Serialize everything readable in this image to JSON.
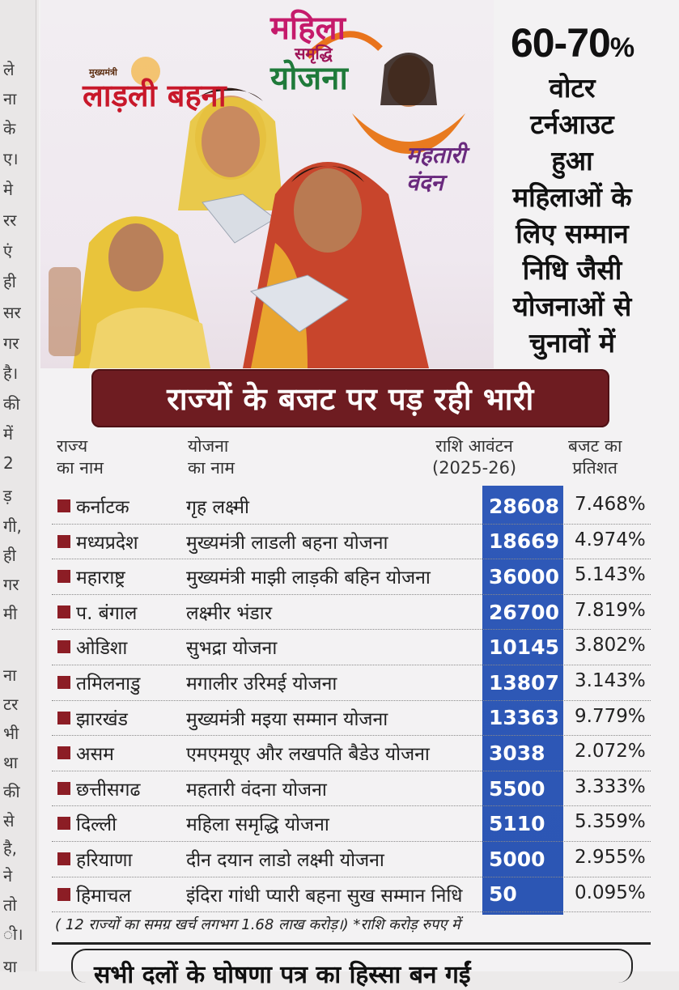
{
  "left_column_fragments": [
    "ले",
    "ना",
    "के",
    "ए।",
    "मे",
    "रर",
    "एं",
    "ही",
    "सर",
    "गर",
    "है।",
    "की",
    "में",
    "2",
    "ड़",
    "गी,",
    "ही",
    "गर",
    "मी",
    "ना",
    "टर",
    "भी",
    "था",
    "की",
    "से",
    "है,",
    "ने",
    "तो",
    "ी।",
    "या"
  ],
  "hero": {
    "ladli_small": "मुख्यमंत्री",
    "ladli_logo": "लाड़ली बहना",
    "mahila_logo_line1": "महिला",
    "mahila_logo_line2": "समृद्धि",
    "mahila_logo_line3": "योजना",
    "mahtari_logo": "महतारी वंदन",
    "colors": {
      "banner": "#6e1c21",
      "amount_column": "#2f59b8",
      "bullet": "#8c1d25"
    }
  },
  "side_note": {
    "percent": "60-70",
    "percent_sign": "%",
    "lines": [
      "वोटर",
      "टर्नआउट",
      "हुआ",
      "महिलाओं के",
      "लिए सम्मान",
      "निधि जैसी",
      "योजनाओं से",
      "चुनावों में"
    ]
  },
  "banner_title": "राज्यों के बजट पर पड़ रही भारी",
  "columns": {
    "state_l1": "राज्य",
    "state_l2": "का नाम",
    "scheme_l1": "योजना",
    "scheme_l2": "का नाम",
    "amount_l1": "राशि आवंटन",
    "amount_l2": "(2025-26)",
    "pct_l1": "बजट का",
    "pct_l2": "प्रतिशत"
  },
  "rows": [
    {
      "state": "कर्नाटक",
      "scheme": "गृह लक्ष्मी",
      "amount": "28608",
      "pct": "7.468%"
    },
    {
      "state": "मध्यप्रदेश",
      "scheme": "मुख्यमंत्री लाडली बहना योजना",
      "amount": "18669",
      "pct": "4.974%"
    },
    {
      "state": "महाराष्ट्र",
      "scheme": "मुख्यमंत्री माझी लाड़की बहिन योजना",
      "amount": "36000",
      "pct": "5.143%"
    },
    {
      "state": "प. बंगाल",
      "scheme": "लक्ष्मीर भंडार",
      "amount": "26700",
      "pct": "7.819%"
    },
    {
      "state": "ओडिशा",
      "scheme": "सुभद्रा योजना",
      "amount": "10145",
      "pct": "3.802%"
    },
    {
      "state": "तमिलनाडु",
      "scheme": "मगालीर उरिमई योजना",
      "amount": "13807",
      "pct": "3.143%"
    },
    {
      "state": "झारखंड",
      "scheme": "मुख्यमंत्री मइया सम्मान योजना",
      "amount": "13363",
      "pct": "9.779%"
    },
    {
      "state": "असम",
      "scheme": "एमएमयूए और लखपति बैडेउ योजना",
      "amount": "3038",
      "pct": "2.072%"
    },
    {
      "state": "छत्तीसगढ",
      "scheme": "महतारी वंदना योजना",
      "amount": "5500",
      "pct": "3.333%"
    },
    {
      "state": "दिल्ली",
      "scheme": "महिला समृद्धि योजना",
      "amount": "5110",
      "pct": "5.359%"
    },
    {
      "state": "हरियाणा",
      "scheme": " दीन दयान लाडो लक्ष्मी योजना",
      "amount": "5000",
      "pct": "2.955%"
    },
    {
      "state": "हिमाचल",
      "scheme": "इंदिरा गांधी प्यारी बहना सुख सम्मान निधि",
      "amount": "50",
      "pct": "0.095%"
    }
  ],
  "footnote": "( 12 राज्यों का समग्र खर्च लगभग 1.68 लाख करोड़।) *राशि करोड़ रुपए में",
  "bottom_heading_partial": "सभी दलों के घोषणा पत्र का हिस्सा बन गईं"
}
